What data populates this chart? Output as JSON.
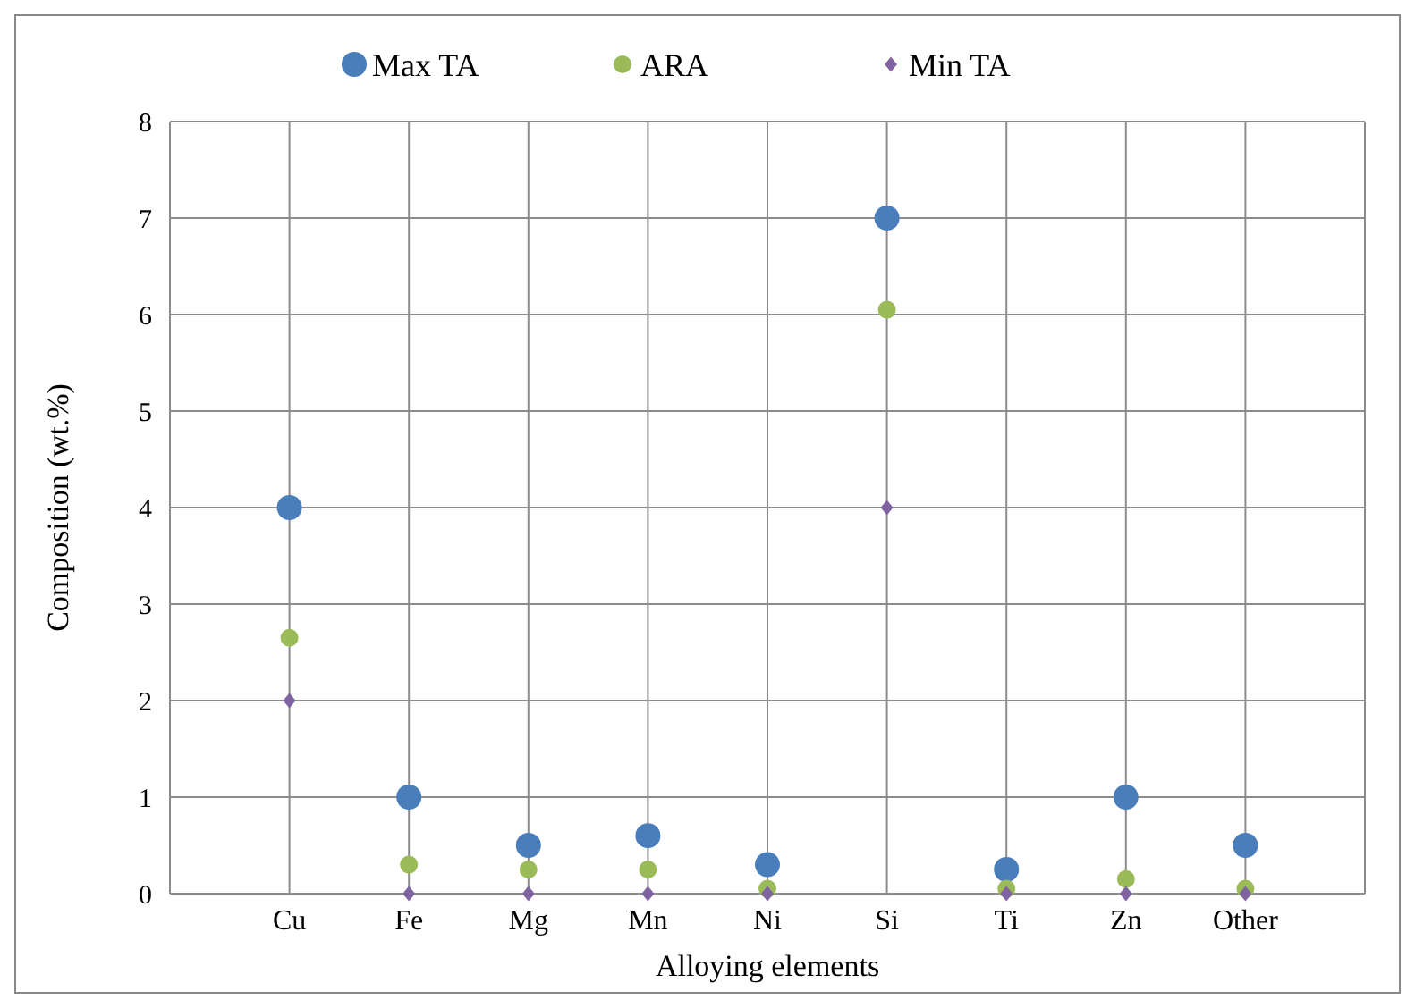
{
  "chart_data": {
    "type": "scatter",
    "xlabel": "Alloying  elements",
    "ylabel": "Composition  (wt.%)",
    "categories": [
      "Cu",
      "Fe",
      "Mg",
      "Mn",
      "Ni",
      "Si",
      "Ti",
      "Zn",
      "Other"
    ],
    "series": [
      {
        "name": "Max TA",
        "color": "#4a7ebb",
        "marker": "circle",
        "values": [
          4,
          1,
          0.5,
          0.6,
          0.3,
          7,
          0.25,
          1,
          0.5
        ]
      },
      {
        "name": "ARA",
        "color": "#9bbb59",
        "marker": "circle",
        "values": [
          2.65,
          0.3,
          0.25,
          0.25,
          0.05,
          6.05,
          0.05,
          0.15,
          0.05
        ]
      },
      {
        "name": "Min TA",
        "color": "#8064a2",
        "marker": "diamond",
        "values": [
          2,
          0,
          0,
          0,
          0,
          4,
          0,
          0,
          0
        ]
      }
    ],
    "ylim": [
      0,
      8
    ],
    "yticks": [
      0,
      1,
      2,
      3,
      4,
      5,
      6,
      7,
      8
    ],
    "grid": true,
    "legend": "top"
  }
}
